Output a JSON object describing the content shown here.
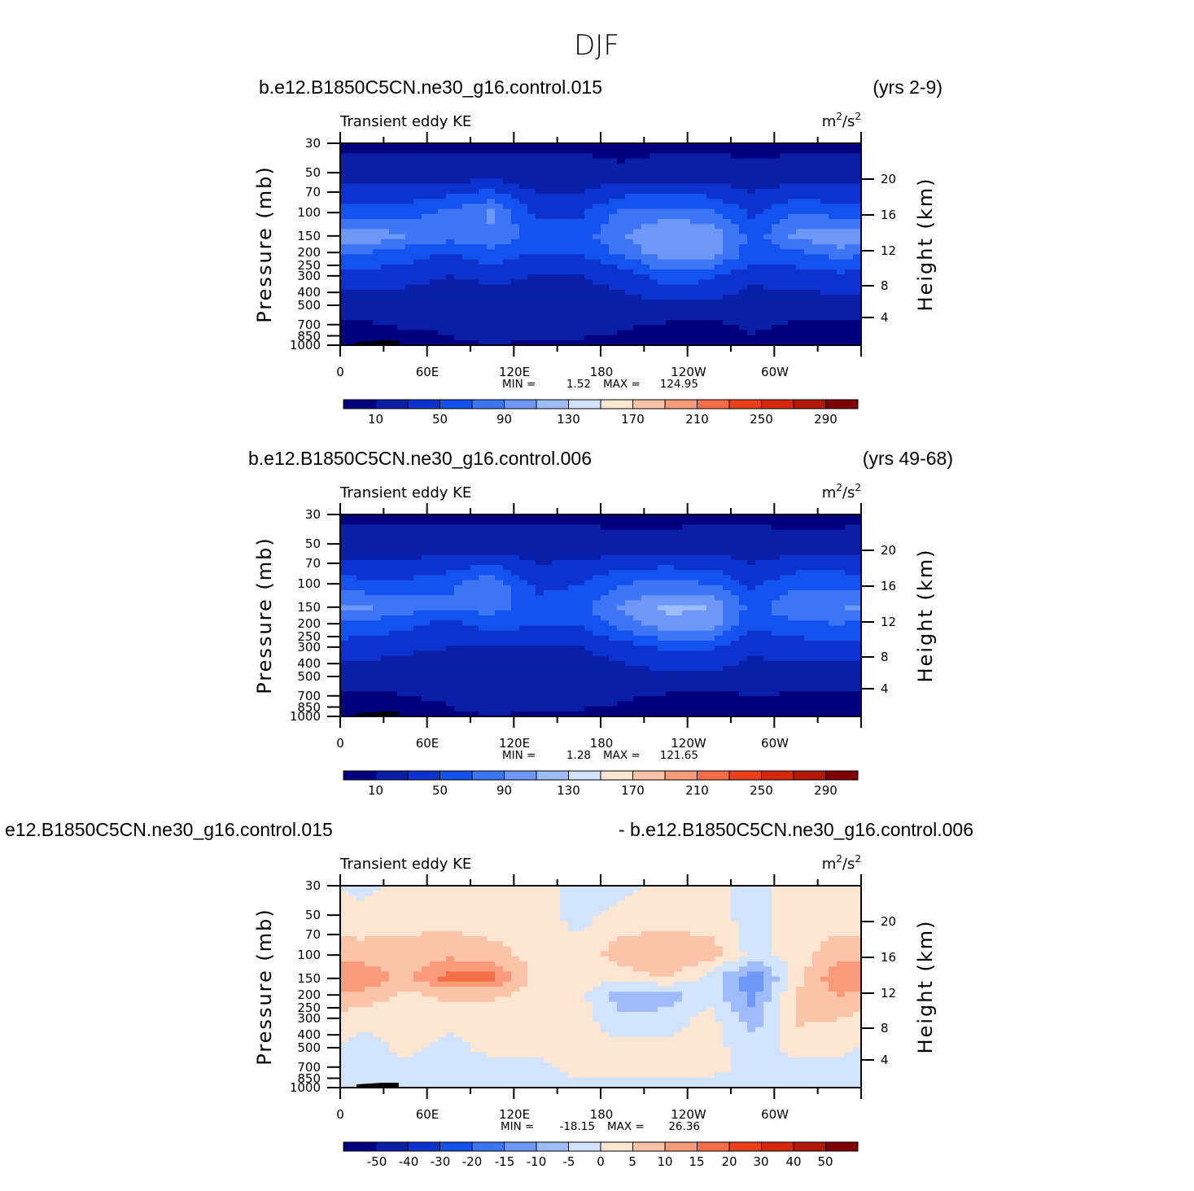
{
  "title": "DJF",
  "chart_data": [
    {
      "type": "heatmap",
      "case_label": "b.e12.B1850C5CN.ne30_g16.control.015",
      "years_label": "(yrs 2-9)",
      "variable_label": "Transient eddy KE",
      "units_label": "m",
      "units_sup1": "2",
      "units_slash": "/s",
      "units_sup2": "2",
      "ylabel": "Pressure (mb)",
      "y2label": "Height (km)",
      "y_ticks": [
        "30",
        "50",
        "70",
        "100",
        "150",
        "200",
        "250",
        "300",
        "400",
        "500",
        "700",
        "850",
        "1000"
      ],
      "y2_ticks": [
        "20",
        "16",
        "12",
        "8",
        "4"
      ],
      "x_ticks": [
        "0",
        "60E",
        "120E",
        "180",
        "120W",
        "60W"
      ],
      "min_label": "MIN =",
      "min_value": "1.52",
      "max_label": "MAX =",
      "max_value": "124.95",
      "colorbar_labels": [
        "10",
        "50",
        "90",
        "130",
        "170",
        "210",
        "250",
        "290"
      ],
      "colorbar_colors": [
        "#00007f",
        "#0a1fa8",
        "#0d33cf",
        "#1452f0",
        "#3d76f5",
        "#6d98f8",
        "#9fbcfa",
        "#d1e3fd",
        "#fde6d1",
        "#fbc3a7",
        "#f99a7a",
        "#f56e47",
        "#ee3f1b",
        "#d8280c",
        "#b11a06",
        "#800000"
      ],
      "field": {
        "lon_centers_deg": [
          15,
          45,
          75,
          105,
          135,
          165,
          195,
          225,
          255,
          285,
          315,
          345
        ],
        "pressure_levels_mb": [
          30,
          50,
          100,
          150,
          200,
          300,
          500,
          700,
          1000
        ],
        "values": [
          [
            8,
            8,
            8,
            8,
            8,
            8,
            2,
            8,
            8,
            4,
            8,
            8
          ],
          [
            15,
            15,
            15,
            15,
            15,
            15,
            15,
            15,
            15,
            15,
            15,
            15
          ],
          [
            60,
            60,
            75,
            95,
            45,
            45,
            75,
            80,
            75,
            45,
            70,
            60
          ],
          [
            110,
            90,
            80,
            85,
            60,
            60,
            90,
            110,
            110,
            60,
            95,
            110
          ],
          [
            70,
            60,
            50,
            65,
            50,
            50,
            75,
            105,
            100,
            60,
            65,
            80
          ],
          [
            40,
            40,
            30,
            35,
            30,
            30,
            40,
            60,
            55,
            35,
            40,
            45
          ],
          [
            20,
            15,
            15,
            20,
            18,
            18,
            20,
            25,
            25,
            20,
            20,
            20
          ],
          [
            8,
            12,
            12,
            18,
            14,
            14,
            12,
            8,
            6,
            12,
            8,
            8
          ],
          [
            4,
            2,
            8,
            10,
            8,
            8,
            6,
            4,
            2,
            8,
            4,
            4
          ]
        ]
      }
    },
    {
      "type": "heatmap",
      "case_label": "b.e12.B1850C5CN.ne30_g16.control.006",
      "years_label": "(yrs 49-68)",
      "variable_label": "Transient eddy KE",
      "units_label": "m",
      "units_sup1": "2",
      "units_slash": "/s",
      "units_sup2": "2",
      "ylabel": "Pressure (mb)",
      "y2label": "Height (km)",
      "y_ticks": [
        "30",
        "50",
        "70",
        "100",
        "150",
        "200",
        "250",
        "300",
        "400",
        "500",
        "700",
        "850",
        "1000"
      ],
      "y2_ticks": [
        "20",
        "16",
        "12",
        "8",
        "4"
      ],
      "x_ticks": [
        "0",
        "60E",
        "120E",
        "180",
        "120W",
        "60W"
      ],
      "min_label": "MIN =",
      "min_value": "1.28",
      "max_label": "MAX =",
      "max_value": "121.65",
      "colorbar_labels": [
        "10",
        "50",
        "90",
        "130",
        "170",
        "210",
        "250",
        "290"
      ],
      "colorbar_colors": [
        "#00007f",
        "#0a1fa8",
        "#0d33cf",
        "#1452f0",
        "#3d76f5",
        "#6d98f8",
        "#9fbcfa",
        "#d1e3fd",
        "#fde6d1",
        "#fbc3a7",
        "#f99a7a",
        "#f56e47",
        "#ee3f1b",
        "#d8280c",
        "#b11a06",
        "#800000"
      ],
      "field": {
        "lon_centers_deg": [
          15,
          45,
          75,
          105,
          135,
          165,
          195,
          225,
          255,
          285,
          315,
          345
        ],
        "pressure_levels_mb": [
          30,
          50,
          100,
          150,
          200,
          300,
          500,
          700,
          1000
        ],
        "values": [
          [
            8,
            8,
            8,
            8,
            8,
            8,
            5,
            5,
            8,
            8,
            4,
            6
          ],
          [
            15,
            15,
            15,
            15,
            15,
            15,
            15,
            15,
            15,
            15,
            15,
            15
          ],
          [
            55,
            55,
            65,
            85,
            45,
            50,
            70,
            75,
            70,
            45,
            65,
            65
          ],
          [
            95,
            80,
            75,
            80,
            55,
            60,
            95,
            115,
            110,
            60,
            90,
            90
          ],
          [
            65,
            55,
            45,
            60,
            50,
            50,
            80,
            105,
            100,
            55,
            65,
            70
          ],
          [
            40,
            35,
            30,
            30,
            30,
            30,
            40,
            55,
            55,
            35,
            40,
            40
          ],
          [
            20,
            15,
            15,
            18,
            18,
            18,
            20,
            25,
            25,
            20,
            20,
            20
          ],
          [
            6,
            10,
            12,
            18,
            14,
            14,
            12,
            8,
            6,
            10,
            8,
            8
          ],
          [
            4,
            2,
            8,
            10,
            8,
            8,
            6,
            4,
            2,
            8,
            4,
            4
          ]
        ]
      }
    },
    {
      "type": "heatmap",
      "case_label": "e12.B1850C5CN.ne30_g16.control.015",
      "years_label": "- b.e12.B1850C5CN.ne30_g16.control.006",
      "variable_label": "Transient eddy KE",
      "units_label": "m",
      "units_sup1": "2",
      "units_slash": "/s",
      "units_sup2": "2",
      "ylabel": "Pressure (mb)",
      "y2label": "Height (km)",
      "y_ticks": [
        "30",
        "50",
        "70",
        "100",
        "150",
        "200",
        "250",
        "300",
        "400",
        "500",
        "700",
        "850",
        "1000"
      ],
      "y2_ticks": [
        "20",
        "16",
        "12",
        "8",
        "4"
      ],
      "x_ticks": [
        "0",
        "60E",
        "120E",
        "180",
        "120W",
        "60W"
      ],
      "min_label": "MIN =",
      "min_value": "-18.15",
      "max_label": "MAX =",
      "max_value": "26.36",
      "colorbar_labels": [
        "-50",
        "-40",
        "-30",
        "-20",
        "-15",
        "-10",
        "-5",
        "0",
        "5",
        "10",
        "15",
        "20",
        "30",
        "40",
        "50"
      ],
      "colorbar_colors": [
        "#00007f",
        "#0a1fa8",
        "#0d33cf",
        "#1452f0",
        "#3d76f5",
        "#6d98f8",
        "#9fbcfa",
        "#d1e3fd",
        "#fde6d1",
        "#fbc3a7",
        "#f99a7a",
        "#f56e47",
        "#ee3f1b",
        "#d8280c",
        "#b11a06",
        "#800000"
      ],
      "field": {
        "lon_centers_deg": [
          15,
          45,
          75,
          105,
          135,
          165,
          195,
          225,
          255,
          285,
          315,
          345
        ],
        "pressure_levels_mb": [
          30,
          50,
          100,
          150,
          200,
          300,
          500,
          700,
          1000
        ],
        "values": [
          [
            -2,
            2,
            2,
            2,
            2,
            -2,
            -2,
            2,
            2,
            -2,
            2,
            2
          ],
          [
            2,
            2,
            2,
            2,
            2,
            -2,
            2,
            2,
            2,
            -2,
            2,
            2
          ],
          [
            7,
            8,
            9,
            7,
            3,
            2,
            8,
            9,
            8,
            -2,
            3,
            8
          ],
          [
            15,
            8,
            17,
            17,
            3,
            2,
            2,
            5,
            -2,
            -15,
            2,
            15
          ],
          [
            8,
            4,
            6,
            6,
            3,
            2,
            -8,
            -8,
            -2,
            -12,
            6,
            10
          ],
          [
            2,
            2,
            2,
            2,
            2,
            2,
            -4,
            -3,
            2,
            -8,
            6,
            5
          ],
          [
            -3,
            2,
            -2,
            2,
            2,
            2,
            2,
            2,
            2,
            -3,
            2,
            2
          ],
          [
            -2,
            -2,
            -2,
            -2,
            -2,
            2,
            2,
            2,
            2,
            -2,
            -2,
            -2
          ],
          [
            -2,
            -2,
            -2,
            -2,
            -2,
            -2,
            -2,
            -2,
            -2,
            -2,
            -2,
            -2
          ]
        ]
      }
    }
  ]
}
